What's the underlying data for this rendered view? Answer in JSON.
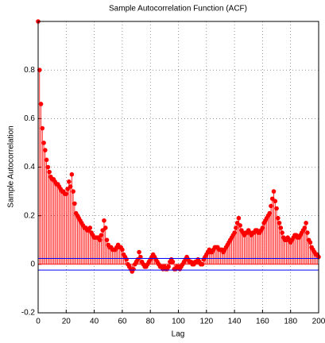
{
  "chart_data": {
    "type": "stem",
    "title": "Sample Autocorrelation Function (ACF)",
    "x_label": "Lag",
    "y_label": "Sample Autocorrelation",
    "x": [
      0,
      1,
      2,
      3,
      4,
      5,
      6,
      7,
      8,
      9,
      10,
      11,
      12,
      13,
      14,
      15,
      16,
      17,
      18,
      19,
      20,
      21,
      22,
      23,
      24,
      25,
      26,
      27,
      28,
      29,
      30,
      31,
      32,
      33,
      34,
      35,
      36,
      37,
      38,
      39,
      40,
      41,
      42,
      43,
      44,
      45,
      46,
      47,
      48,
      49,
      50,
      51,
      52,
      53,
      54,
      55,
      56,
      57,
      58,
      59,
      60,
      61,
      62,
      63,
      64,
      65,
      66,
      67,
      68,
      69,
      70,
      71,
      72,
      73,
      74,
      75,
      76,
      77,
      78,
      79,
      80,
      81,
      82,
      83,
      84,
      85,
      86,
      87,
      88,
      89,
      90,
      91,
      92,
      93,
      94,
      95,
      96,
      97,
      98,
      99,
      100,
      101,
      102,
      103,
      104,
      105,
      106,
      107,
      108,
      109,
      110,
      111,
      112,
      113,
      114,
      115,
      116,
      117,
      118,
      119,
      120,
      121,
      122,
      123,
      124,
      125,
      126,
      127,
      128,
      129,
      130,
      131,
      132,
      133,
      134,
      135,
      136,
      137,
      138,
      139,
      140,
      141,
      142,
      143,
      144,
      145,
      146,
      147,
      148,
      149,
      150,
      151,
      152,
      153,
      154,
      155,
      156,
      157,
      158,
      159,
      160,
      161,
      162,
      163,
      164,
      165,
      166,
      167,
      168,
      169,
      170,
      171,
      172,
      173,
      174,
      175,
      176,
      177,
      178,
      179,
      180,
      181,
      182,
      183,
      184,
      185,
      186,
      187,
      188,
      189,
      190,
      191,
      192,
      193,
      194,
      195,
      196,
      197,
      198,
      199,
      200
    ],
    "values": [
      1,
      0.8,
      0.66,
      0.56,
      0.5,
      0.47,
      0.43,
      0.4,
      0.38,
      0.36,
      0.35,
      0.35,
      0.34,
      0.33,
      0.33,
      0.32,
      0.31,
      0.3,
      0.3,
      0.29,
      0.29,
      0.31,
      0.34,
      0.32,
      0.37,
      0.3,
      0.25,
      0.21,
      0.2,
      0.19,
      0.18,
      0.17,
      0.16,
      0.15,
      0.15,
      0.14,
      0.14,
      0.15,
      0.13,
      0.12,
      0.11,
      0.11,
      0.11,
      0.11,
      0.1,
      0.12,
      0.14,
      0.18,
      0.15,
      0.1,
      0.08,
      0.07,
      0.07,
      0.06,
      0.06,
      0.06,
      0.07,
      0.08,
      0.07,
      0.07,
      0.06,
      0.04,
      0.03,
      0.02,
      0,
      -0.01,
      -0.02,
      -0.03,
      -0.02,
      0,
      0.01,
      0.02,
      0.05,
      0.03,
      0.01,
      0,
      -0.01,
      -0.01,
      0,
      0.01,
      0.02,
      0.03,
      0.04,
      0.03,
      0.02,
      0.01,
      0,
      -0.01,
      -0.01,
      -0.02,
      -0.01,
      -0.02,
      -0.02,
      -0.01,
      0.01,
      0.02,
      0.01,
      -0.02,
      -0.02,
      -0.01,
      -0.01,
      -0.02,
      -0.01,
      0,
      0.01,
      0.02,
      0.03,
      0.02,
      0.01,
      0.01,
      0,
      0,
      0.01,
      0.01,
      0.02,
      0.01,
      0,
      0,
      0.02,
      0.03,
      0.04,
      0.05,
      0.06,
      0.05,
      0.05,
      0.06,
      0.07,
      0.07,
      0.07,
      0.06,
      0.06,
      0.06,
      0.05,
      0.06,
      0.07,
      0.08,
      0.09,
      0.1,
      0.11,
      0.12,
      0.13,
      0.15,
      0.17,
      0.19,
      0.16,
      0.14,
      0.13,
      0.12,
      0.13,
      0.13,
      0.14,
      0.13,
      0.12,
      0.13,
      0.13,
      0.14,
      0.14,
      0.13,
      0.13,
      0.14,
      0.15,
      0.17,
      0.18,
      0.19,
      0.2,
      0.21,
      0.24,
      0.27,
      0.3,
      0.26,
      0.23,
      0.19,
      0.17,
      0.15,
      0.13,
      0.11,
      0.1,
      0.1,
      0.11,
      0.1,
      0.09,
      0.1,
      0.11,
      0.12,
      0.12,
      0.11,
      0.11,
      0.12,
      0.13,
      0.14,
      0.15,
      0.17,
      0.13,
      0.1,
      0.09,
      0.07,
      0.06,
      0.05,
      0.04,
      0.04,
      0.03
    ],
    "color": "#ff0000",
    "bounds": {
      "values": [
        0.024,
        -0.024
      ],
      "color": "#0000ff"
    },
    "xlim": [
      0,
      200
    ],
    "xticks": [
      0,
      20,
      40,
      60,
      80,
      100,
      120,
      140,
      160,
      180,
      200
    ],
    "ylim": [
      -0.2,
      1.0
    ],
    "yticks": [
      -0.2,
      0,
      0.2,
      0.4,
      0.6,
      0.8
    ],
    "grid": true
  }
}
